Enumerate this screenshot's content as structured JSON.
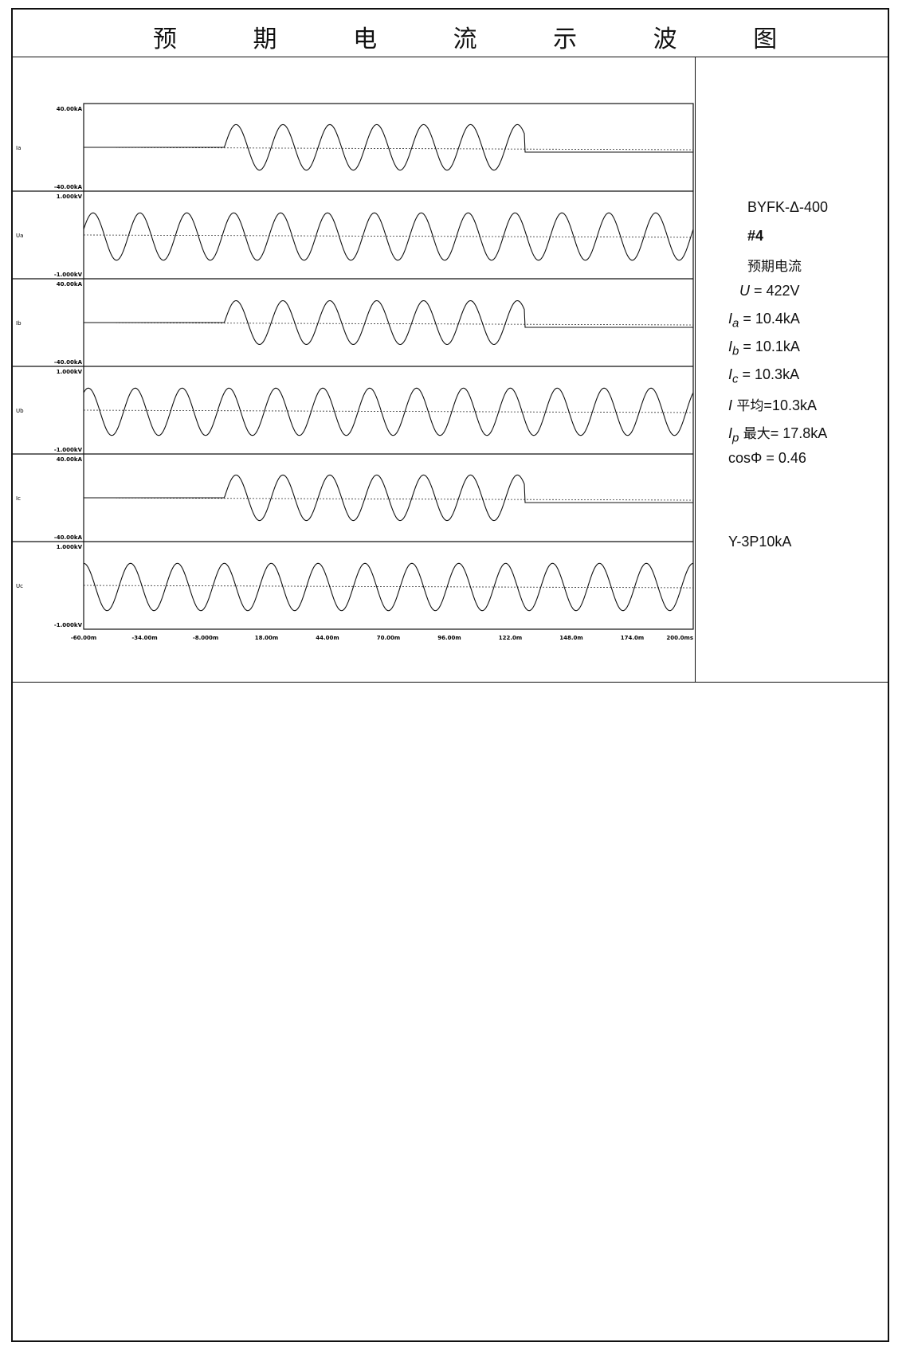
{
  "title": "预 期 电 流 示 波 图",
  "chart_data": {
    "type": "line",
    "x_ticks": [
      "-60.00m",
      "-34.00m",
      "-8.000m",
      "18.00m",
      "44.00m",
      "70.00m",
      "96.00m",
      "122.0m",
      "148.0m",
      "174.0m",
      "200.0ms"
    ],
    "xlim": [
      -60,
      200
    ],
    "channels": [
      {
        "name": "Ia",
        "top_label": "40.00kA",
        "bottom_label": "-40.00kA",
        "kind": "current",
        "on": 0,
        "off": 128,
        "amplitude": 0.26
      },
      {
        "name": "Ua",
        "top_label": "1.000kV",
        "bottom_label": "-1.000kV",
        "kind": "voltage",
        "amplitude": 0.27
      },
      {
        "name": "Ib",
        "top_label": "40.00kA",
        "bottom_label": "-40.00kA",
        "kind": "current",
        "on": 0,
        "off": 128,
        "amplitude": 0.25
      },
      {
        "name": "Ub",
        "top_label": "1.000kV",
        "bottom_label": "-1.000kV",
        "kind": "voltage",
        "amplitude": 0.27
      },
      {
        "name": "Ic",
        "top_label": "40.00kA",
        "bottom_label": "-40.00kA",
        "kind": "current",
        "on": 0,
        "off": 128,
        "amplitude": 0.26
      },
      {
        "name": "Uc",
        "top_label": "1.000kV",
        "bottom_label": "-1.000kV",
        "kind": "voltage",
        "amplitude": 0.27
      }
    ],
    "frequency_hz": 50
  },
  "info": {
    "model": "BYFK-Δ-400",
    "number": "#4",
    "subtitle": "预期电流",
    "u_sym": "U",
    "u_val": " = 422V",
    "ia_sub": "a",
    "ia_val": " = 10.4kA",
    "ib_sub": "b",
    "ib_val": " = 10.1kA",
    "ic_sub": "c",
    "ic_val": " = 10.3kA",
    "iavg_sym": "I",
    "iavg_label": " 平均",
    "iavg_val": "=10.3kA",
    "ip_sub": "p",
    "ip_label": " 最大",
    "ip_val": "= 17.8kA",
    "cos": "cosΦ = 0.46",
    "spec": "Y-3P10kA"
  }
}
